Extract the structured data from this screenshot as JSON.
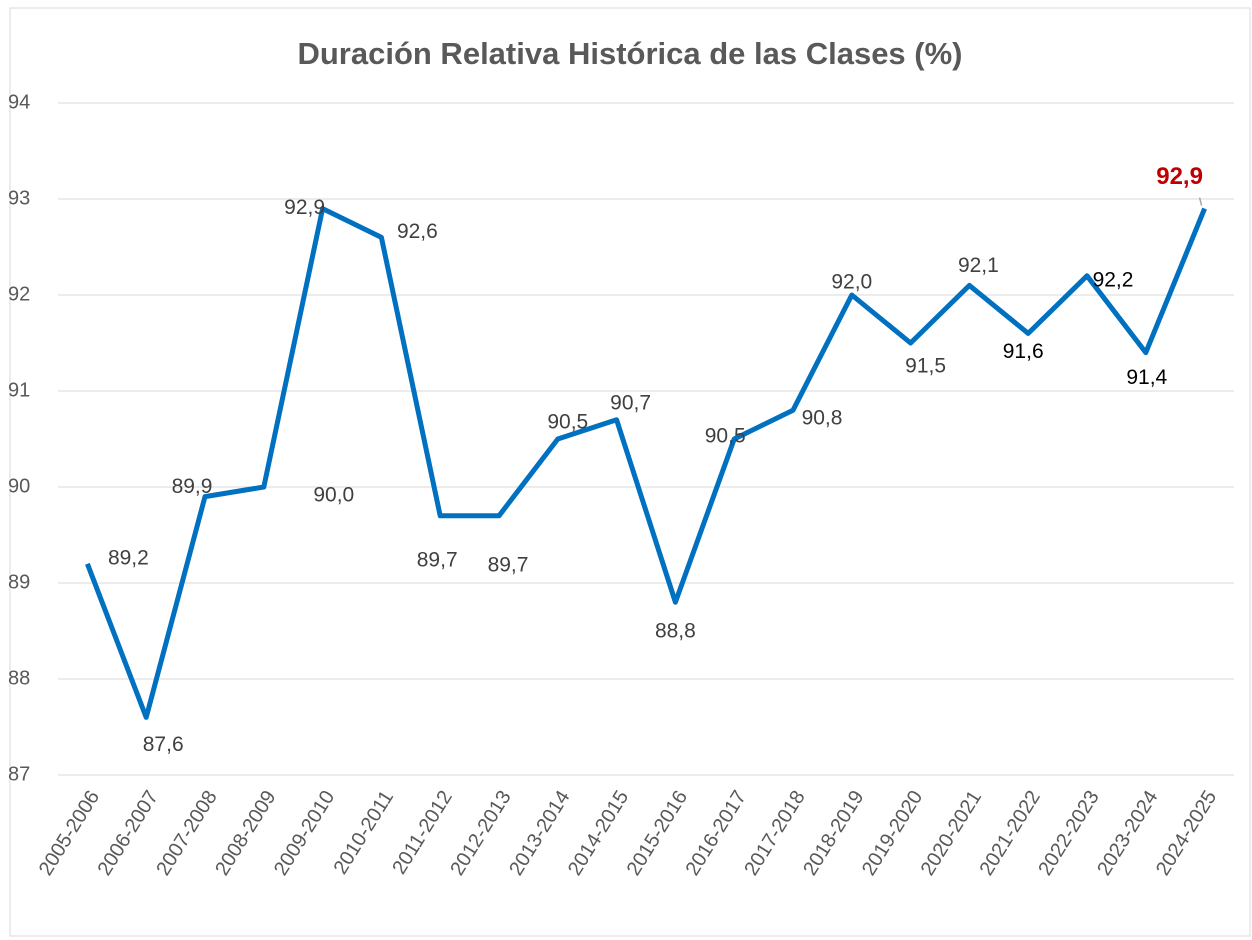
{
  "chart_data": {
    "type": "line",
    "title": "Duración Relativa Histórica de las Clases (%)",
    "categories": [
      "2005-2006",
      "2006-2007",
      "2007-2008",
      "2008-2009",
      "2009-2010",
      "2010-2011",
      "2011-2012",
      "2012-2013",
      "2013-2014",
      "2014-2015",
      "2015-2016",
      "2016-2017",
      "2017-2018",
      "2018-2019",
      "2019-2020",
      "2020-2021",
      "2021-2022",
      "2022-2023",
      "2023-2024",
      "2024-2025"
    ],
    "series": [
      {
        "color": "#0070c0",
        "values": [
          89.2,
          87.6,
          89.9,
          90.0,
          92.9,
          92.6,
          89.7,
          89.7,
          90.5,
          90.7,
          88.8,
          90.5,
          90.8,
          92.0,
          91.5,
          92.1,
          91.6,
          92.2,
          91.4,
          92.9
        ],
        "value_labels": [
          "89,2",
          "87,6",
          "89,9",
          "90,0",
          "92,9",
          "92,6",
          "89,7",
          "89,7",
          "90,5",
          "90,7",
          "88,8",
          "90,5",
          "90,8",
          "92,0",
          "91,5",
          "92,1",
          "91,6",
          "92,2",
          "91,4",
          "92,9"
        ]
      }
    ],
    "ylim": [
      87,
      94
    ],
    "yticks": [
      87,
      88,
      89,
      90,
      91,
      92,
      93,
      94
    ],
    "grid": true
  }
}
